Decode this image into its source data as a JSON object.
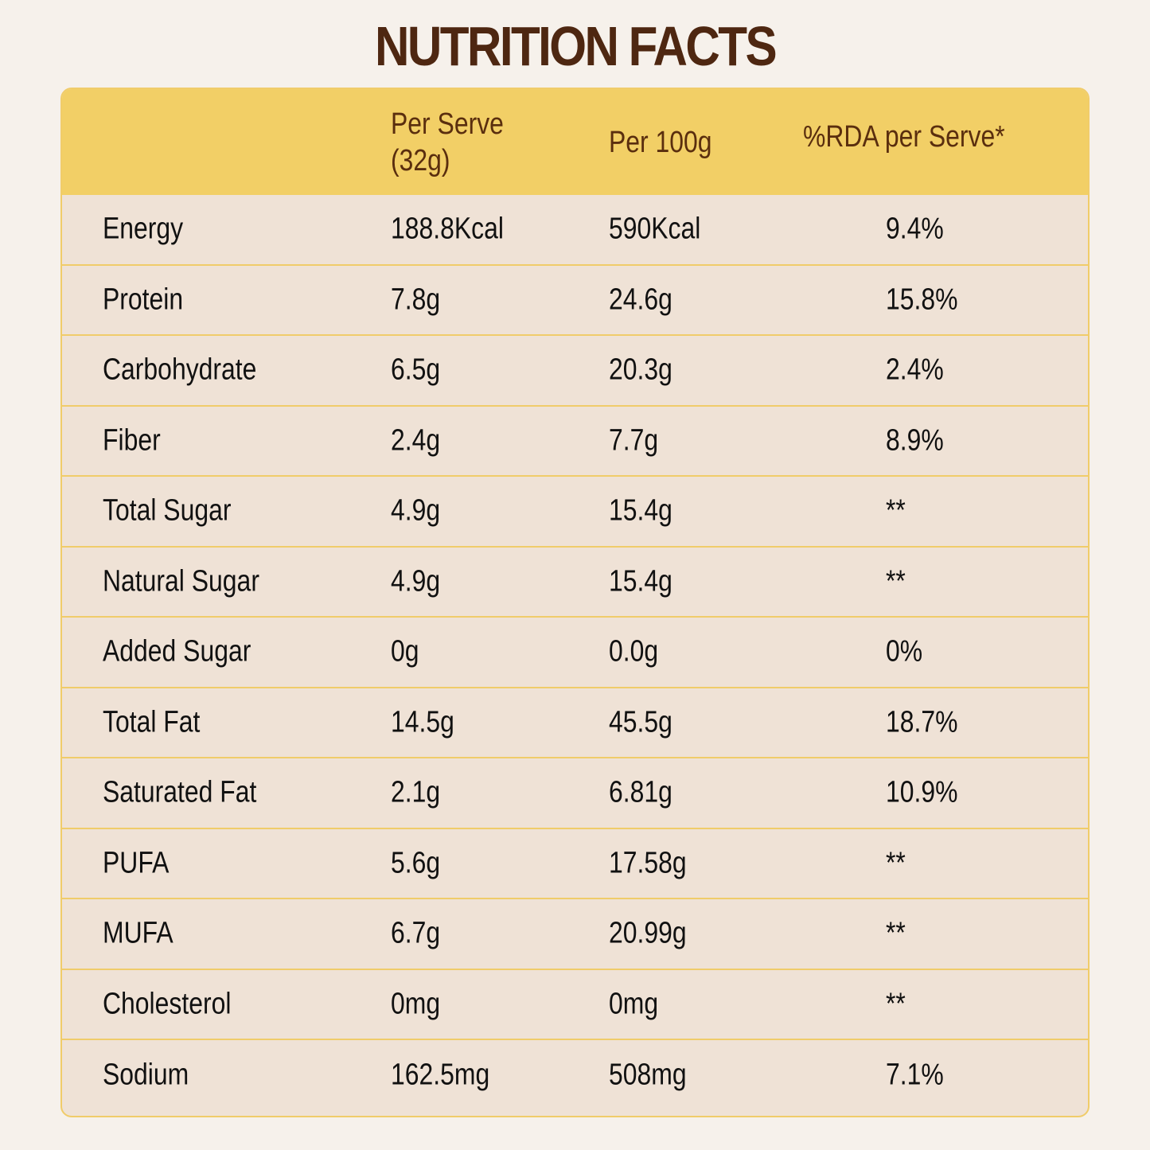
{
  "title": "NUTRITION FACTS",
  "colors": {
    "title": "#4e2711",
    "header_bg": "#f2cf66",
    "row_bg": "#efe2d6",
    "border": "#f0cc6a",
    "page_bg": "#f6f1eb"
  },
  "header": {
    "col1": "",
    "col2_line1": "Per Serve",
    "col2_line2": "(32g)",
    "col3": "Per 100g",
    "col4": "%RDA per Serve*"
  },
  "rows": [
    {
      "nutrient": "Energy",
      "per_serve": "188.8Kcal",
      "per_100g": "590Kcal",
      "rda": "9.4%"
    },
    {
      "nutrient": "Protein",
      "per_serve": "7.8g",
      "per_100g": "24.6g",
      "rda": "15.8%"
    },
    {
      "nutrient": "Carbohydrate",
      "per_serve": "6.5g",
      "per_100g": "20.3g",
      "rda": "2.4%"
    },
    {
      "nutrient": "Fiber",
      "per_serve": "2.4g",
      "per_100g": "7.7g",
      "rda": "8.9%"
    },
    {
      "nutrient": "Total Sugar",
      "per_serve": "4.9g",
      "per_100g": "15.4g",
      "rda": "**"
    },
    {
      "nutrient": "Natural Sugar",
      "per_serve": "4.9g",
      "per_100g": "15.4g",
      "rda": "**"
    },
    {
      "nutrient": "Added Sugar",
      "per_serve": "0g",
      "per_100g": "0.0g",
      "rda": "0%"
    },
    {
      "nutrient": "Total Fat",
      "per_serve": "14.5g",
      "per_100g": "45.5g",
      "rda": "18.7%"
    },
    {
      "nutrient": "Saturated Fat",
      "per_serve": "2.1g",
      "per_100g": "6.81g",
      "rda": "10.9%"
    },
    {
      "nutrient": "PUFA",
      "per_serve": "5.6g",
      "per_100g": "17.58g",
      "rda": "**"
    },
    {
      "nutrient": "MUFA",
      "per_serve": "6.7g",
      "per_100g": "20.99g",
      "rda": "**"
    },
    {
      "nutrient": "Cholesterol",
      "per_serve": "0mg",
      "per_100g": "0mg",
      "rda": "**"
    },
    {
      "nutrient": "Sodium",
      "per_serve": "162.5mg",
      "per_100g": "508mg",
      "rda": "7.1%"
    }
  ]
}
